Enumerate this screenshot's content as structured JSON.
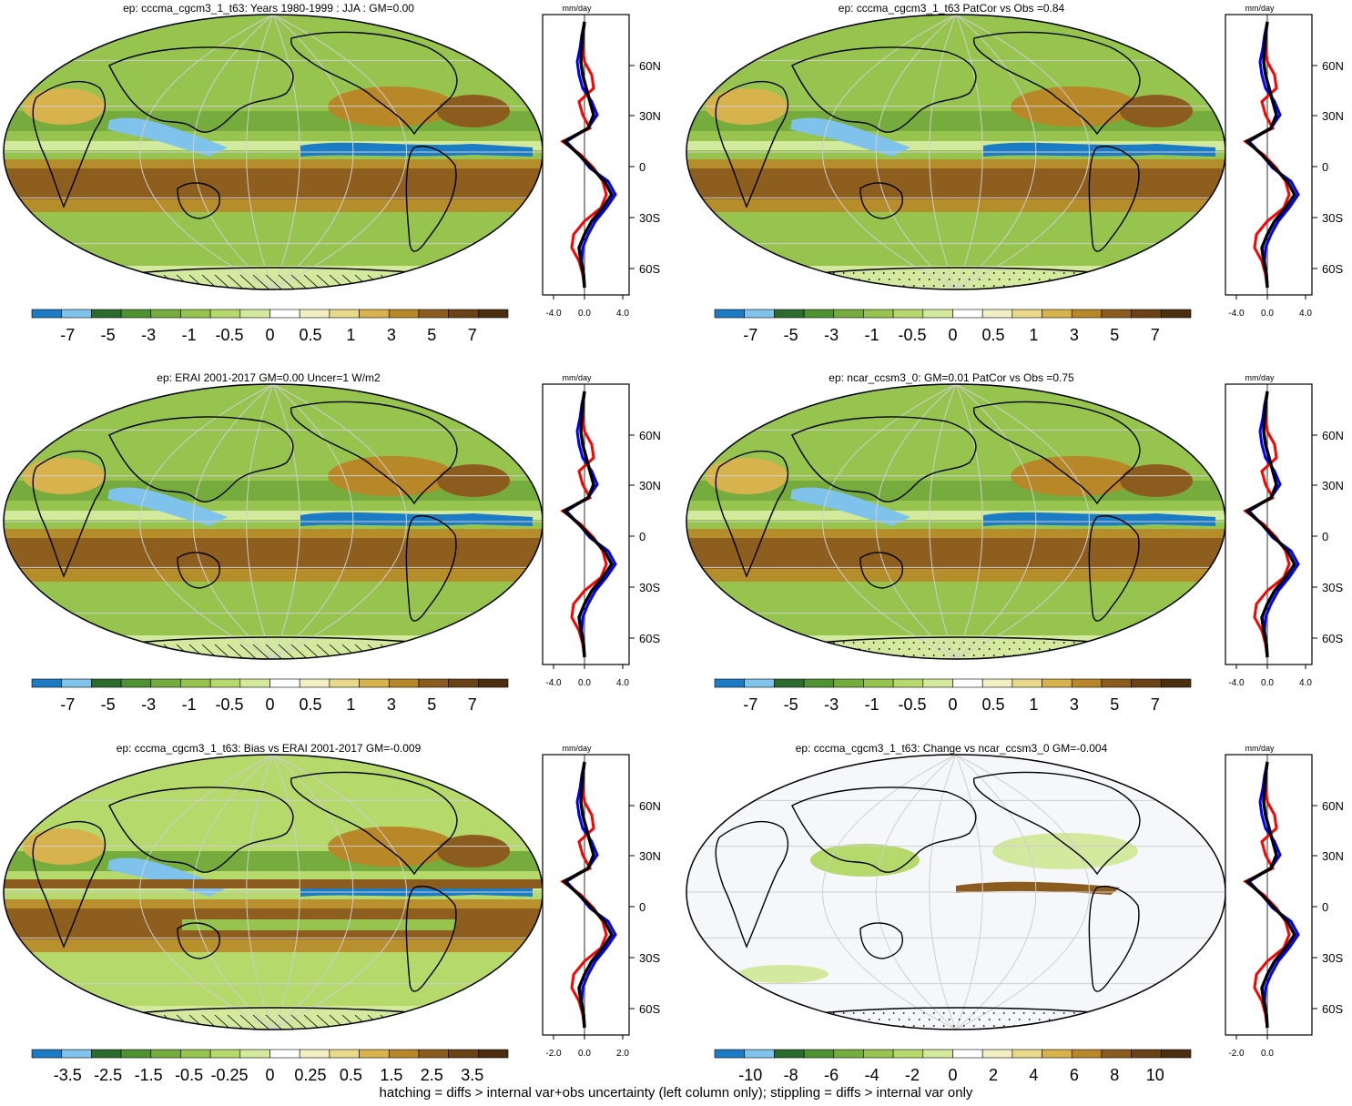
{
  "colors": {
    "map_palette": [
      "#1b7bc4",
      "#7fc3ec",
      "#2c6b2e",
      "#4e9231",
      "#75ac3d",
      "#97c44f",
      "#b6d96b",
      "#d3e99d",
      "#ffffff",
      "#f3efc4",
      "#e9d98a",
      "#d8b24d",
      "#b88727",
      "#8b5c1d",
      "#6b4216",
      "#4b2e10"
    ],
    "obs_line": "#ff0000",
    "model_line": "#0000ff",
    "mean_line": "#000000"
  },
  "panels": [
    {
      "title": "ep: cccma_cgcm3_1_t63: Years 1980-1999 : JJA : GM=0.00",
      "colorbar_labels": [
        "-7",
        "-5",
        "-3",
        "-1",
        "-0.5",
        "0",
        "0.5",
        "1",
        "3",
        "5",
        "7"
      ],
      "zonal_unit": "mm/day",
      "zonal_xticks": [
        "-4.0",
        "0.0",
        "4.0"
      ],
      "zonal_lat_labels": [
        "60N",
        "30N",
        "0",
        "30S",
        "60S"
      ]
    },
    {
      "title": "ep: cccma_cgcm3_1_t63 PatCor vs Obs =0.84",
      "colorbar_labels": [
        "-7",
        "-5",
        "-3",
        "-1",
        "-0.5",
        "0",
        "0.5",
        "1",
        "3",
        "5",
        "7"
      ],
      "zonal_unit": "mm/day",
      "zonal_xticks": [
        "-4.0",
        "0.0",
        "4.0"
      ],
      "zonal_lat_labels": [
        "60N",
        "30N",
        "0",
        "30S",
        "60S"
      ]
    },
    {
      "title": "ep: ERAI 2001-2017 GM=0.00 Uncer=1 W/m2",
      "colorbar_labels": [
        "-7",
        "-5",
        "-3",
        "-1",
        "-0.5",
        "0",
        "0.5",
        "1",
        "3",
        "5",
        "7"
      ],
      "zonal_unit": "mm/day",
      "zonal_xticks": [
        "-4.0",
        "0.0",
        "4.0"
      ],
      "zonal_lat_labels": [
        "60N",
        "30N",
        "0",
        "30S",
        "60S"
      ]
    },
    {
      "title": "ep: ncar_ccsm3_0: GM=0.01 PatCor vs Obs =0.75",
      "colorbar_labels": [
        "-7",
        "-5",
        "-3",
        "-1",
        "-0.5",
        "0",
        "0.5",
        "1",
        "3",
        "5",
        "7"
      ],
      "zonal_unit": "mm/day",
      "zonal_xticks": [
        "-4.0",
        "0.0",
        "4.0"
      ],
      "zonal_lat_labels": [
        "60N",
        "30N",
        "0",
        "30S",
        "60S"
      ]
    },
    {
      "title": "ep: cccma_cgcm3_1_t63: Bias vs ERAI 2001-2017 GM=-0.009",
      "colorbar_labels": [
        "-3.5",
        "-2.5",
        "-1.5",
        "-0.5",
        "-0.25",
        "0",
        "0.25",
        "0.5",
        "1.5",
        "2.5",
        "3.5"
      ],
      "zonal_unit": "mm/day",
      "zonal_xticks": [
        "-2.0",
        "0.0",
        "2.0"
      ],
      "zonal_lat_labels": [
        "60N",
        "30N",
        "0",
        "30S",
        "60S"
      ]
    },
    {
      "title": "ep: cccma_cgcm3_1_t63: Change vs ncar_ccsm3_0 GM=-0.004",
      "colorbar_labels": [
        "-10",
        "-8",
        "-6",
        "-4",
        "-2",
        "0",
        "2",
        "4",
        "6",
        "8",
        "10"
      ],
      "zonal_unit": "mm/day",
      "zonal_xticks": [
        "-2.0",
        "0.0"
      ],
      "zonal_lat_labels": [
        "60N",
        "30N",
        "0",
        "30S",
        "60S"
      ]
    }
  ],
  "footer": "hatching = diffs > internal var+obs uncertainty (left column only); stippling = diffs > internal var only"
}
